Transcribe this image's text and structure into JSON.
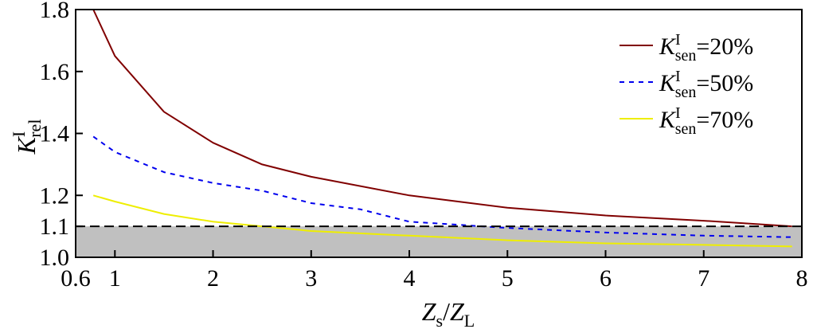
{
  "chart_data": {
    "type": "line",
    "title": "",
    "xlabel": {
      "main": "Z",
      "sub1": "s",
      "sep": "/",
      "main2": "Z",
      "sub2": "L"
    },
    "ylabel": {
      "main": "K",
      "sup": "I",
      "sub": "rel"
    },
    "xlim": [
      0.6,
      8
    ],
    "ylim": [
      1.0,
      1.8
    ],
    "x_ticks": [
      {
        "value": 0.6,
        "label": "0.6"
      },
      {
        "value": 1,
        "label": "1"
      },
      {
        "value": 2,
        "label": "2"
      },
      {
        "value": 3,
        "label": "3"
      },
      {
        "value": 4,
        "label": "4"
      },
      {
        "value": 5,
        "label": "5"
      },
      {
        "value": 6,
        "label": "6"
      },
      {
        "value": 7,
        "label": "7"
      },
      {
        "value": 8,
        "label": "8"
      }
    ],
    "y_ticks": [
      {
        "value": 1.0,
        "label": "1.0"
      },
      {
        "value": 1.1,
        "label": "1.1"
      },
      {
        "value": 1.2,
        "label": "1.2"
      },
      {
        "value": 1.4,
        "label": "1.4"
      },
      {
        "value": 1.6,
        "label": "1.6"
      },
      {
        "value": 1.8,
        "label": "1.8"
      }
    ],
    "threshold": {
      "y": 1.1,
      "style": "dashed",
      "color": "#000000",
      "shade_color": "#c0c0c0"
    },
    "grid": false,
    "legend_position": "top-right",
    "series": [
      {
        "legend": {
          "main": "K",
          "sup": "I",
          "sub": "sen",
          "suffix": "=20%"
        },
        "color": "#800000",
        "style": "solid",
        "points": [
          [
            0.78,
            1.8
          ],
          [
            1.0,
            1.65
          ],
          [
            1.5,
            1.47
          ],
          [
            2.0,
            1.37
          ],
          [
            2.5,
            1.3
          ],
          [
            3.0,
            1.26
          ],
          [
            4.0,
            1.2
          ],
          [
            5.0,
            1.16
          ],
          [
            6.0,
            1.135
          ],
          [
            7.0,
            1.118
          ],
          [
            7.9,
            1.1
          ]
        ]
      },
      {
        "legend": {
          "main": "K",
          "sup": "I",
          "sub": "sen",
          "suffix": "=50%"
        },
        "color": "#0000ee",
        "style": "dashed",
        "points": [
          [
            0.78,
            1.39
          ],
          [
            1.0,
            1.34
          ],
          [
            1.5,
            1.275
          ],
          [
            2.0,
            1.24
          ],
          [
            2.5,
            1.215
          ],
          [
            3.0,
            1.175
          ],
          [
            3.5,
            1.155
          ],
          [
            4.0,
            1.115
          ],
          [
            4.5,
            1.105
          ],
          [
            5.0,
            1.095
          ],
          [
            6.0,
            1.08
          ],
          [
            7.0,
            1.07
          ],
          [
            7.9,
            1.065
          ]
        ]
      },
      {
        "legend": {
          "main": "K",
          "sup": "I",
          "sub": "sen",
          "suffix": "=70%"
        },
        "color": "#eeee00",
        "style": "solid",
        "points": [
          [
            0.78,
            1.2
          ],
          [
            1.0,
            1.18
          ],
          [
            1.5,
            1.14
          ],
          [
            2.0,
            1.115
          ],
          [
            2.5,
            1.1
          ],
          [
            3.0,
            1.085
          ],
          [
            4.0,
            1.07
          ],
          [
            5.0,
            1.055
          ],
          [
            6.0,
            1.045
          ],
          [
            7.0,
            1.04
          ],
          [
            7.9,
            1.035
          ]
        ]
      }
    ]
  }
}
